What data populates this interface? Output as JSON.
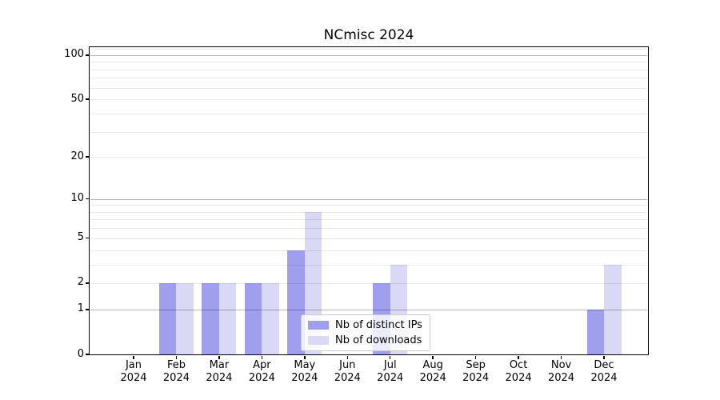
{
  "chart_data": {
    "type": "bar",
    "title": "NCmisc 2024",
    "categories": [
      "Jan",
      "Feb",
      "Mar",
      "Apr",
      "May",
      "Jun",
      "Jul",
      "Aug",
      "Sep",
      "Oct",
      "Nov",
      "Dec"
    ],
    "x_year": "2024",
    "series": [
      {
        "name": "Nb of distinct IPs",
        "color": "#9f9fee",
        "values": [
          0,
          2,
          2,
          2,
          4,
          0,
          2,
          0,
          0,
          0,
          0,
          1
        ]
      },
      {
        "name": "Nb of downloads",
        "color": "#d9d9f6",
        "values": [
          0,
          2,
          2,
          2,
          8,
          0,
          3,
          0,
          0,
          0,
          0,
          3
        ]
      }
    ],
    "y_ticks": [
      0,
      1,
      2,
      5,
      10,
      20,
      50,
      100
    ],
    "y_scale": "log1p",
    "ylim": [
      0,
      113
    ],
    "major_gridlines": [
      1,
      10,
      100
    ],
    "minor_gridlines": [
      2,
      3,
      4,
      5,
      6,
      7,
      8,
      9,
      20,
      30,
      40,
      50,
      60,
      70,
      80,
      90,
      110
    ],
    "grid": true,
    "legend_position": "lower-center-inside",
    "colors": {
      "spine": "#000000",
      "major_grid": "rgba(0,0,0,0.28)",
      "minor_grid": "rgba(0,0,0,0.09)",
      "background": "#ffffff"
    }
  }
}
